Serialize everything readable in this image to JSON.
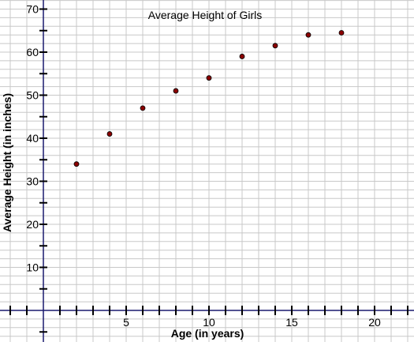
{
  "chart_data": {
    "type": "scatter",
    "title": "Average Height of Girls",
    "xlabel": "Age (in years)",
    "ylabel": "Average Height (in inches)",
    "xlim": [
      -2,
      22
    ],
    "ylim": [
      -6,
      70
    ],
    "x_ticks": [
      5,
      10,
      15,
      20
    ],
    "y_ticks": [
      10,
      20,
      30,
      40,
      50,
      60,
      70
    ],
    "grid": true,
    "x": [
      2,
      4,
      6,
      8,
      10,
      12,
      14,
      16,
      18
    ],
    "y": [
      34,
      41,
      47,
      51,
      54,
      59,
      61.5,
      64,
      64.5
    ],
    "colors": {
      "grid": "#c8c8c8",
      "axis": "#1a1a6e",
      "point_fill": "#8b0000",
      "point_stroke": "#000000"
    }
  }
}
